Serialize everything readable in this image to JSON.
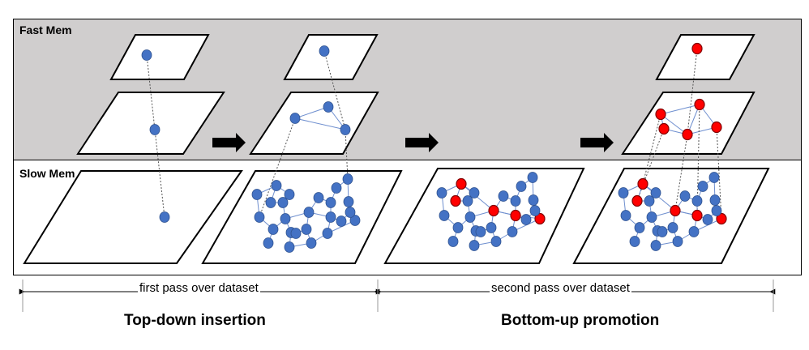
{
  "regions": {
    "fast_mem": "Fast Mem",
    "slow_mem": "Slow Mem"
  },
  "passes": {
    "first": "first pass over dataset",
    "second": "second pass over dataset"
  },
  "phases": {
    "top_down": "Top-down insertion",
    "bottom_up": "Bottom-up promotion"
  },
  "colors": {
    "fast_bg": "#d0cece",
    "node_blue": "#4472c4",
    "node_red": "#ff0000",
    "edge": "#6f8fcf",
    "outline": "#000000"
  }
}
